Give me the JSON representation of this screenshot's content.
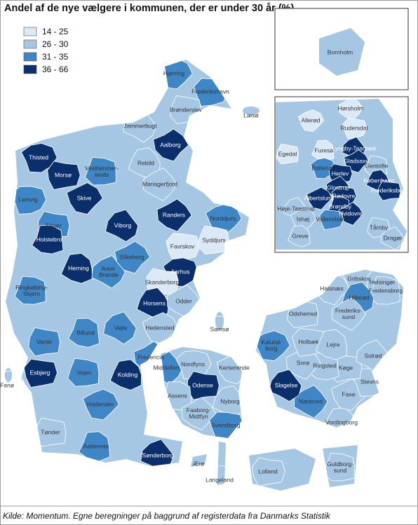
{
  "title": "Andel af de nye vælgere i kommunen, der er under 30 år (%)",
  "legend": {
    "classes": [
      {
        "label": "14 - 25",
        "color": "#dbe9f6"
      },
      {
        "label": "26 - 30",
        "color": "#a6c7e4"
      },
      {
        "label": "31 - 35",
        "color": "#3f86c6"
      },
      {
        "label": "36 - 66",
        "color": "#0b2f6b"
      }
    ]
  },
  "municipalities": [
    {
      "label": [
        "Hjørring"
      ],
      "class": 2
    },
    {
      "label": [
        "Frederikshavn"
      ],
      "class": 2
    },
    {
      "label": [
        "Brønderslev"
      ],
      "class": 1
    },
    {
      "label": [
        "Læsø"
      ],
      "class": 1
    },
    {
      "label": [
        "Jammerbugt"
      ],
      "class": 1
    },
    {
      "label": [
        "Aalborg"
      ],
      "class": 3
    },
    {
      "label": [
        "Thisted"
      ],
      "class": 3
    },
    {
      "label": [
        "Morsø"
      ],
      "class": 3
    },
    {
      "label": [
        "Vesthimmer-",
        "lands"
      ],
      "class": 2
    },
    {
      "label": [
        "Rebild"
      ],
      "class": 1
    },
    {
      "label": [
        "Mariagerfjord"
      ],
      "class": 1
    },
    {
      "label": [
        "Skive"
      ],
      "class": 3
    },
    {
      "label": [
        "Lemvig"
      ],
      "class": 2
    },
    {
      "label": [
        "Struer"
      ],
      "class": 2
    },
    {
      "label": [
        "Holstebro"
      ],
      "class": 3
    },
    {
      "label": [
        "Viborg"
      ],
      "class": 3
    },
    {
      "label": [
        "Randers"
      ],
      "class": 3
    },
    {
      "label": [
        "Norddjurs"
      ],
      "class": 2
    },
    {
      "label": [
        "Favrskov"
      ],
      "class": 0
    },
    {
      "label": [
        "Syddjurs"
      ],
      "class": 0
    },
    {
      "label": [
        "Herning"
      ],
      "class": 3
    },
    {
      "label": [
        "Ikast-",
        "Brande"
      ],
      "class": 2
    },
    {
      "label": [
        "Silkeborg"
      ],
      "class": 2
    },
    {
      "label": [
        "Aarhus"
      ],
      "class": 3
    },
    {
      "label": [
        "Skanderborg"
      ],
      "class": 0
    },
    {
      "label": [
        "Ringkøbing-",
        "Skjern"
      ],
      "class": 2
    },
    {
      "label": [
        "Horsens"
      ],
      "class": 3
    },
    {
      "label": [
        "Odder"
      ],
      "class": 1
    },
    {
      "label": [
        "Hedensted"
      ],
      "class": 1
    },
    {
      "label": [
        "Samsø"
      ],
      "class": 1
    },
    {
      "label": [
        "Varde"
      ],
      "class": 2
    },
    {
      "label": [
        "Billund"
      ],
      "class": 2
    },
    {
      "label": [
        "Vejle"
      ],
      "class": 2
    },
    {
      "label": [
        "Fredericia"
      ],
      "class": 2
    },
    {
      "label": [
        "Fanø"
      ],
      "class": 1
    },
    {
      "label": [
        "Esbjerg"
      ],
      "class": 3
    },
    {
      "label": [
        "Vejen"
      ],
      "class": 2
    },
    {
      "label": [
        "Kolding"
      ],
      "class": 3
    },
    {
      "label": [
        "Middelfart"
      ],
      "class": 2
    },
    {
      "label": [
        "Kerteminde"
      ],
      "class": 1
    },
    {
      "label": [
        "Nordfyns"
      ],
      "class": 1
    },
    {
      "label": [
        "Odense"
      ],
      "class": 3
    },
    {
      "label": [
        "Assens"
      ],
      "class": 1
    },
    {
      "label": [
        "Nyborg"
      ],
      "class": 1
    },
    {
      "label": [
        "Faaborg-",
        "Midtfyn"
      ],
      "class": 1
    },
    {
      "label": [
        "Haderslev"
      ],
      "class": 2
    },
    {
      "label": [
        "Svendborg"
      ],
      "class": 2
    },
    {
      "label": [
        "Tønder"
      ],
      "class": 1
    },
    {
      "label": [
        "Aabenraa"
      ],
      "class": 2
    },
    {
      "label": [
        "Sønderborg"
      ],
      "class": 3
    },
    {
      "label": [
        "Ærø"
      ],
      "class": 1
    },
    {
      "label": [
        "Langeland"
      ],
      "class": 1
    },
    {
      "label": [
        "Lolland"
      ],
      "class": 1
    },
    {
      "label": [
        "Guldborg-",
        "sund"
      ],
      "class": 1
    },
    {
      "label": [
        "Vordingborg"
      ],
      "class": 1
    },
    {
      "label": [
        "Næstved"
      ],
      "class": 2
    },
    {
      "label": [
        "Faxe"
      ],
      "class": 1
    },
    {
      "label": [
        "Stevns"
      ],
      "class": 1
    },
    {
      "label": [
        "Køge"
      ],
      "class": 1
    },
    {
      "label": [
        "Ringsted"
      ],
      "class": 1
    },
    {
      "label": [
        "Slagelse"
      ],
      "class": 3
    },
    {
      "label": [
        "Sorø"
      ],
      "class": 1
    },
    {
      "label": [
        "Kalund-",
        "borg"
      ],
      "class": 2
    },
    {
      "label": [
        "Holbæk"
      ],
      "class": 1
    },
    {
      "label": [
        "Odsherred"
      ],
      "class": 1
    },
    {
      "label": [
        "Lejre"
      ],
      "class": 1
    },
    {
      "label": [
        "Solrød"
      ],
      "class": 1
    },
    {
      "label": [
        "Halsnæs"
      ],
      "class": 1
    },
    {
      "label": [
        "Gribskov"
      ],
      "class": 1
    },
    {
      "label": [
        "Helsingør"
      ],
      "class": 1
    },
    {
      "label": [
        "Fredensborg"
      ],
      "class": 1
    },
    {
      "label": [
        "Hillerød"
      ],
      "class": 2
    },
    {
      "label": [
        "Frederiks-",
        "sund"
      ],
      "class": 1
    }
  ],
  "inset_capital": [
    {
      "label": [
        "Hørsholm"
      ],
      "class": 0
    },
    {
      "label": [
        "Allerød"
      ],
      "class": 0
    },
    {
      "label": [
        "Rudersdal"
      ],
      "class": 0
    },
    {
      "label": [
        "Egedal"
      ],
      "class": 0
    },
    {
      "label": [
        "Furesø"
      ],
      "class": 0
    },
    {
      "label": [
        "Lyngby-Taarbæk"
      ],
      "class": 3
    },
    {
      "label": [
        "Gladsaxe"
      ],
      "class": 3
    },
    {
      "label": [
        "Ballerup"
      ],
      "class": 2
    },
    {
      "label": [
        "Herlev"
      ],
      "class": 3
    },
    {
      "label": [
        "Gentofte"
      ],
      "class": 1
    },
    {
      "label": [
        "København"
      ],
      "class": 3
    },
    {
      "label": [
        "Glostrup"
      ],
      "class": 3
    },
    {
      "label": [
        "Albertslund"
      ],
      "class": 3
    },
    {
      "label": [
        "Rødovre"
      ],
      "class": 3
    },
    {
      "label": [
        "Frederiksberg"
      ],
      "class": 3
    },
    {
      "label": [
        "Brøndby"
      ],
      "class": 3
    },
    {
      "label": [
        "Høje-Taastrup"
      ],
      "class": 1
    },
    {
      "label": [
        "Hvidovre"
      ],
      "class": 3
    },
    {
      "label": [
        "Ishøj"
      ],
      "class": 1
    },
    {
      "label": [
        "Vallensbæk"
      ],
      "class": 2
    },
    {
      "label": [
        "Tårnby"
      ],
      "class": 1
    },
    {
      "label": [
        "Greve"
      ],
      "class": 1
    },
    {
      "label": [
        "Dragør"
      ],
      "class": 1
    }
  ],
  "inset_bornholm": [
    {
      "label": [
        "Bornholm"
      ],
      "class": 1
    }
  ],
  "source": "Kilde: Momentum. Egne beregninger på baggrund af registerdata fra Danmarks Statistik"
}
